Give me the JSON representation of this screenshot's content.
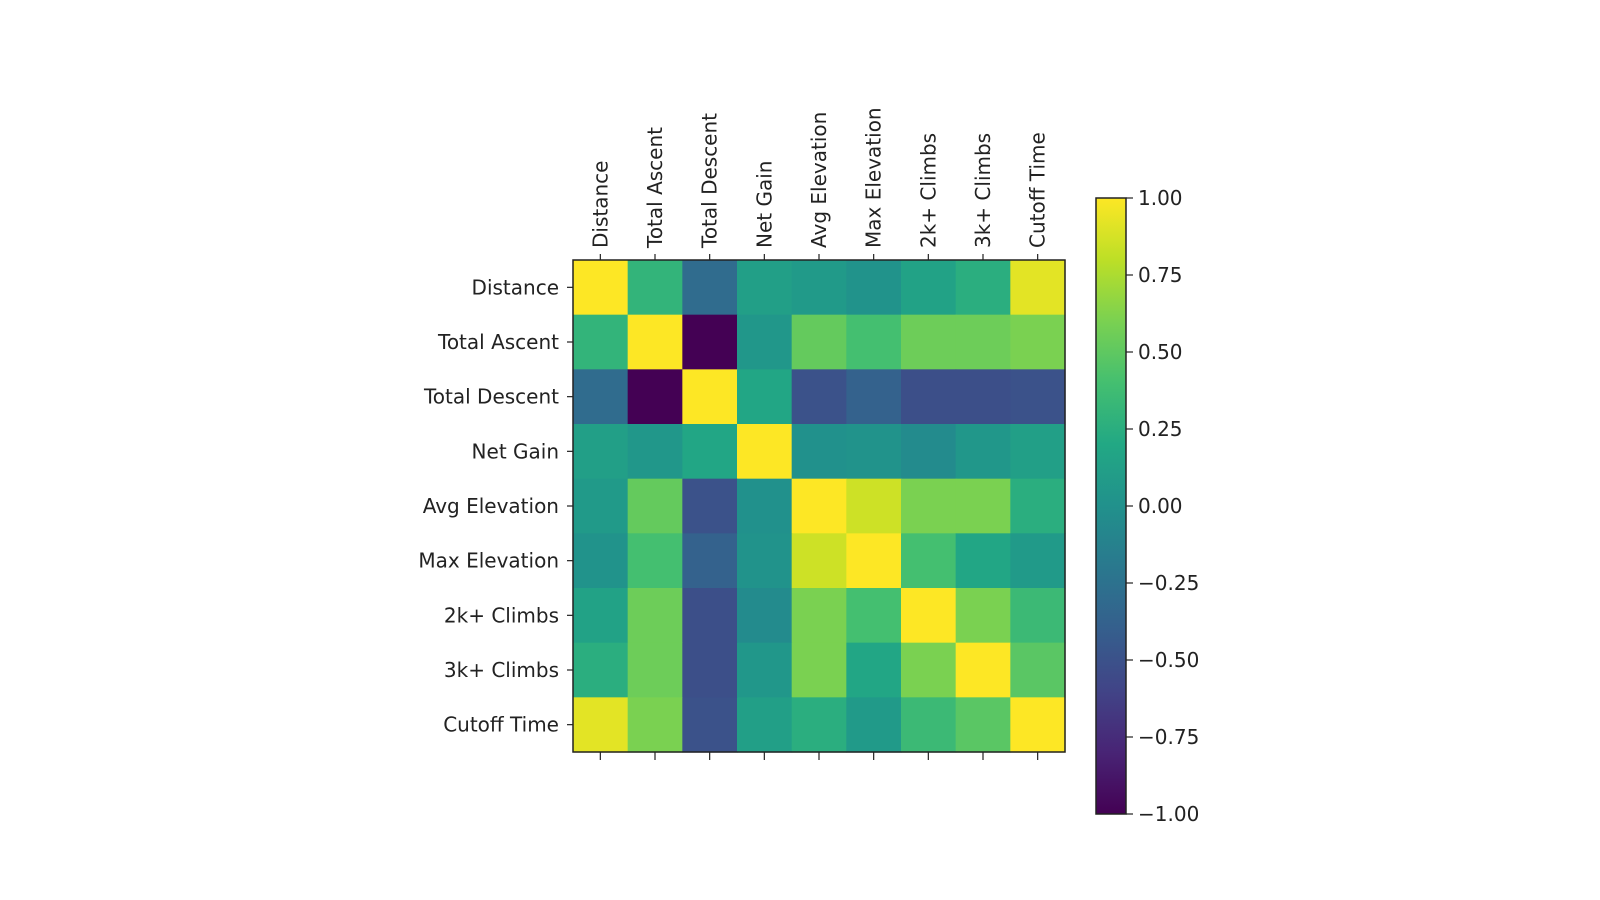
{
  "chart_data": {
    "type": "heatmap",
    "title": "",
    "xlabel": "",
    "ylabel": "",
    "x_tick_position": "top",
    "grid": false,
    "x": [
      "Distance",
      "Total Ascent",
      "Total Descent",
      "Net Gain",
      "Avg Elevation",
      "Max Elevation",
      "2k+ Climbs",
      "3k+ Climbs",
      "Cutoff Time"
    ],
    "y": [
      "Distance",
      "Total Ascent",
      "Total Descent",
      "Net Gain",
      "Avg Elevation",
      "Max Elevation",
      "2k+ Climbs",
      "3k+ Climbs",
      "Cutoff Time"
    ],
    "values": [
      [
        1.0,
        0.3,
        -0.3,
        0.12,
        0.08,
        0.02,
        0.15,
        0.25,
        0.92
      ],
      [
        0.3,
        1.0,
        -1.0,
        0.05,
        0.52,
        0.4,
        0.55,
        0.55,
        0.6
      ],
      [
        -0.3,
        -1.0,
        1.0,
        0.18,
        -0.5,
        -0.38,
        -0.52,
        -0.52,
        -0.5
      ],
      [
        0.12,
        0.05,
        0.18,
        1.0,
        0.0,
        0.02,
        -0.05,
        0.05,
        0.12
      ],
      [
        0.08,
        0.52,
        -0.5,
        0.0,
        1.0,
        0.85,
        0.6,
        0.6,
        0.25
      ],
      [
        0.02,
        0.4,
        -0.38,
        0.02,
        0.85,
        1.0,
        0.4,
        0.18,
        0.08
      ],
      [
        0.15,
        0.55,
        -0.52,
        -0.05,
        0.6,
        0.4,
        1.0,
        0.6,
        0.35
      ],
      [
        0.25,
        0.55,
        -0.52,
        0.05,
        0.6,
        0.18,
        0.6,
        1.0,
        0.48
      ],
      [
        0.92,
        0.6,
        -0.5,
        0.12,
        0.25,
        0.08,
        0.35,
        0.48,
        1.0
      ]
    ],
    "colorscale": "viridis",
    "zlim": [
      -1.0,
      1.0
    ],
    "colorbar": {
      "ticks": [
        1.0,
        0.75,
        0.5,
        0.25,
        0.0,
        -0.25,
        -0.5,
        -0.75,
        -1.0
      ],
      "tick_labels": [
        "1.00",
        "0.75",
        "0.50",
        "0.25",
        "0.00",
        "−0.25",
        "−0.50",
        "−0.75",
        "−1.00"
      ],
      "position": "right"
    }
  }
}
